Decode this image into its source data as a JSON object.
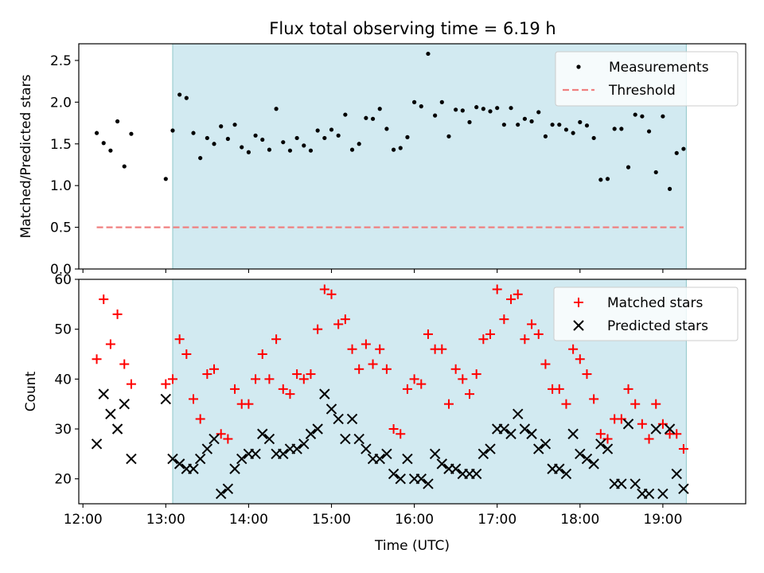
{
  "figure": {
    "title": "Flux total observing time = 6.19 h",
    "xlabel": "Time (UTC)"
  },
  "colors": {
    "measurements": "#000000",
    "threshold": "#f08080",
    "matched": "#ff0000",
    "predicted": "#000000",
    "observing_span": "#add8e6"
  },
  "chart_data": [
    {
      "type": "scatter",
      "panel": "top",
      "title": "Flux total observing time = 6.19 h",
      "xlabel": "",
      "ylabel": "Matched/Predicted stars",
      "xlim_hours": [
        11.95,
        20.0
      ],
      "ylim": [
        0,
        2.7
      ],
      "x_ticks": [
        "12:00",
        "13:00",
        "14:00",
        "15:00",
        "16:00",
        "17:00",
        "18:00",
        "19:00"
      ],
      "y_ticks": [
        "0.0",
        "0.5",
        "1.0",
        "1.5",
        "2.0",
        "2.5"
      ],
      "legend_position": "top-right",
      "shaded_span": [
        "13:05",
        "19:17"
      ],
      "threshold": {
        "name": "Threshold",
        "value": 0.5,
        "x_range": [
          "12:10",
          "19:15"
        ]
      },
      "series": [
        {
          "name": "Measurements",
          "x": [
            "12:10",
            "12:15",
            "12:20",
            "12:25",
            "12:30",
            "12:35",
            "13:00",
            "13:05",
            "13:10",
            "13:15",
            "13:20",
            "13:25",
            "13:30",
            "13:35",
            "13:40",
            "13:45",
            "13:50",
            "13:55",
            "14:00",
            "14:05",
            "14:10",
            "14:15",
            "14:20",
            "14:25",
            "14:30",
            "14:35",
            "14:40",
            "14:45",
            "14:50",
            "14:55",
            "15:00",
            "15:05",
            "15:10",
            "15:15",
            "15:20",
            "15:25",
            "15:30",
            "15:35",
            "15:40",
            "15:45",
            "15:50",
            "15:55",
            "16:00",
            "16:05",
            "16:10",
            "16:15",
            "16:20",
            "16:25",
            "16:30",
            "16:35",
            "16:40",
            "16:45",
            "16:50",
            "16:55",
            "17:00",
            "17:05",
            "17:10",
            "17:15",
            "17:20",
            "17:25",
            "17:30",
            "17:35",
            "17:40",
            "17:45",
            "17:50",
            "17:55",
            "18:00",
            "18:05",
            "18:10",
            "18:15",
            "18:20",
            "18:25",
            "18:30",
            "18:35",
            "18:40",
            "18:45",
            "18:50",
            "18:55",
            "19:00",
            "19:05",
            "19:10",
            "19:15"
          ],
          "values": [
            1.63,
            1.51,
            1.42,
            1.77,
            1.23,
            1.62,
            1.08,
            1.66,
            2.09,
            2.05,
            1.63,
            1.33,
            1.57,
            1.5,
            1.71,
            1.56,
            1.73,
            1.46,
            1.4,
            1.6,
            1.55,
            1.43,
            1.92,
            1.52,
            1.42,
            1.57,
            1.48,
            1.42,
            1.66,
            1.57,
            1.67,
            1.6,
            1.85,
            1.43,
            1.5,
            1.81,
            1.8,
            1.92,
            1.68,
            1.43,
            1.45,
            1.58,
            2.0,
            1.95,
            2.58,
            1.84,
            2.0,
            1.59,
            1.91,
            1.9,
            1.76,
            1.94,
            1.92,
            1.89,
            1.93,
            1.73,
            1.93,
            1.73,
            1.8,
            1.77,
            1.88,
            1.59,
            1.73,
            1.73,
            1.67,
            1.63,
            1.76,
            1.72,
            1.57,
            1.07,
            1.08,
            1.68,
            1.68,
            1.22,
            1.85,
            1.83,
            1.65,
            1.16,
            1.83,
            0.96,
            1.39,
            1.44
          ]
        }
      ]
    },
    {
      "type": "scatter",
      "panel": "bottom",
      "xlabel": "Time (UTC)",
      "ylabel": "Count",
      "xlim_hours": [
        11.95,
        20.0
      ],
      "ylim": [
        15,
        60
      ],
      "x_ticks": [
        "12:00",
        "13:00",
        "14:00",
        "15:00",
        "16:00",
        "17:00",
        "18:00",
        "19:00"
      ],
      "y_ticks": [
        "20",
        "30",
        "40",
        "50",
        "60"
      ],
      "legend_position": "top-right",
      "shaded_span": [
        "13:05",
        "19:17"
      ],
      "series": [
        {
          "name": "Matched stars",
          "marker": "+",
          "x": [
            "12:10",
            "12:15",
            "12:20",
            "12:25",
            "12:30",
            "12:35",
            "13:00",
            "13:05",
            "13:10",
            "13:15",
            "13:20",
            "13:25",
            "13:30",
            "13:35",
            "13:40",
            "13:45",
            "13:50",
            "13:55",
            "14:00",
            "14:05",
            "14:10",
            "14:15",
            "14:20",
            "14:25",
            "14:30",
            "14:35",
            "14:40",
            "14:45",
            "14:50",
            "14:55",
            "15:00",
            "15:05",
            "15:10",
            "15:15",
            "15:20",
            "15:25",
            "15:30",
            "15:35",
            "15:40",
            "15:45",
            "15:50",
            "15:55",
            "16:00",
            "16:05",
            "16:10",
            "16:15",
            "16:20",
            "16:25",
            "16:30",
            "16:35",
            "16:40",
            "16:45",
            "16:50",
            "16:55",
            "17:00",
            "17:05",
            "17:10",
            "17:15",
            "17:20",
            "17:25",
            "17:30",
            "17:35",
            "17:40",
            "17:45",
            "17:50",
            "17:55",
            "18:00",
            "18:05",
            "18:10",
            "18:15",
            "18:20",
            "18:25",
            "18:30",
            "18:35",
            "18:40",
            "18:45",
            "18:50",
            "18:55",
            "19:00",
            "19:05",
            "19:10",
            "19:15"
          ],
          "values": [
            44,
            56,
            47,
            53,
            43,
            39,
            39,
            40,
            48,
            45,
            36,
            32,
            41,
            42,
            29,
            28,
            38,
            35,
            35,
            40,
            45,
            40,
            48,
            38,
            37,
            41,
            40,
            41,
            50,
            58,
            57,
            51,
            52,
            46,
            42,
            47,
            43,
            46,
            42,
            30,
            29,
            38,
            40,
            39,
            49,
            46,
            46,
            35,
            42,
            40,
            37,
            41,
            48,
            49,
            58,
            52,
            56,
            57,
            48,
            51,
            49,
            43,
            38,
            38,
            35,
            46,
            44,
            41,
            36,
            29,
            28,
            32,
            32,
            38,
            35,
            31,
            28,
            35,
            31,
            29,
            29,
            26
          ]
        },
        {
          "name": "Predicted stars",
          "marker": "x",
          "x": [
            "12:10",
            "12:15",
            "12:20",
            "12:25",
            "12:30",
            "12:35",
            "13:00",
            "13:05",
            "13:10",
            "13:15",
            "13:20",
            "13:25",
            "13:30",
            "13:35",
            "13:40",
            "13:45",
            "13:50",
            "13:55",
            "14:00",
            "14:05",
            "14:10",
            "14:15",
            "14:20",
            "14:25",
            "14:30",
            "14:35",
            "14:40",
            "14:45",
            "14:50",
            "14:55",
            "15:00",
            "15:05",
            "15:10",
            "15:15",
            "15:20",
            "15:25",
            "15:30",
            "15:35",
            "15:40",
            "15:45",
            "15:50",
            "15:55",
            "16:00",
            "16:05",
            "16:10",
            "16:15",
            "16:20",
            "16:25",
            "16:30",
            "16:35",
            "16:40",
            "16:45",
            "16:50",
            "16:55",
            "17:00",
            "17:05",
            "17:10",
            "17:15",
            "17:20",
            "17:25",
            "17:30",
            "17:35",
            "17:40",
            "17:45",
            "17:50",
            "17:55",
            "18:00",
            "18:05",
            "18:10",
            "18:15",
            "18:20",
            "18:25",
            "18:30",
            "18:35",
            "18:40",
            "18:45",
            "18:50",
            "18:55",
            "19:00",
            "19:05",
            "19:10",
            "19:15"
          ],
          "values": [
            27,
            37,
            33,
            30,
            35,
            24,
            36,
            24,
            23,
            22,
            22,
            24,
            26,
            28,
            17,
            18,
            22,
            24,
            25,
            25,
            29,
            28,
            25,
            25,
            26,
            26,
            27,
            29,
            30,
            37,
            34,
            32,
            28,
            32,
            28,
            26,
            24,
            24,
            25,
            21,
            20,
            24,
            20,
            20,
            19,
            25,
            23,
            22,
            22,
            21,
            21,
            21,
            25,
            26,
            30,
            30,
            29,
            33,
            30,
            29,
            26,
            27,
            22,
            22,
            21,
            29,
            25,
            24,
            23,
            27,
            26,
            19,
            19,
            31,
            19,
            17,
            17,
            30,
            17,
            30,
            21,
            18
          ]
        }
      ]
    }
  ]
}
